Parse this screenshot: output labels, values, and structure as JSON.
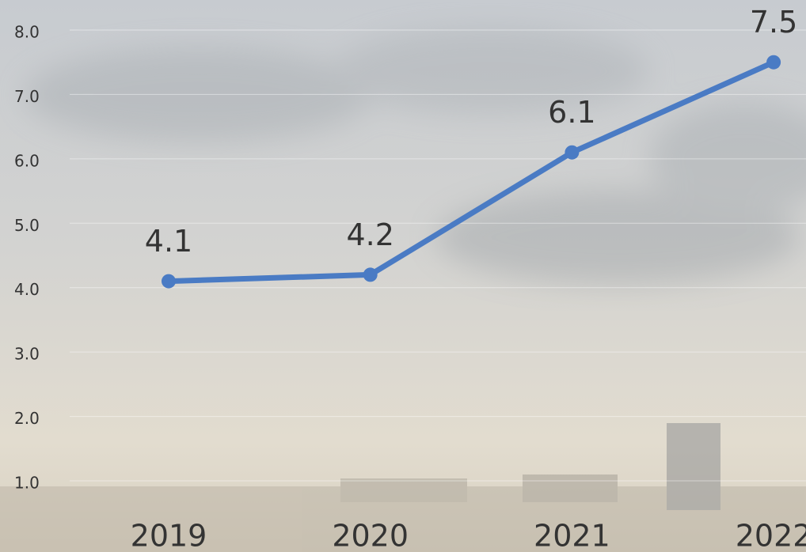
{
  "chart_data": {
    "type": "line",
    "categories": [
      "2019",
      "2020",
      "2021",
      "2022"
    ],
    "values": [
      4.1,
      4.2,
      6.1,
      7.5
    ],
    "color": "#4a7bc4",
    "ylim": [
      1,
      8
    ],
    "yticks": [
      {
        "value": 1,
        "label": "1.0"
      },
      {
        "value": 2,
        "label": "2.0"
      },
      {
        "value": 3,
        "label": "3.0"
      },
      {
        "value": 4,
        "label": "4.0"
      },
      {
        "value": 5,
        "label": "5.0"
      },
      {
        "value": 6,
        "label": "6.0"
      },
      {
        "value": 7,
        "label": "7.0"
      },
      {
        "value": 8,
        "label": "8.0"
      }
    ],
    "grid": true
  }
}
